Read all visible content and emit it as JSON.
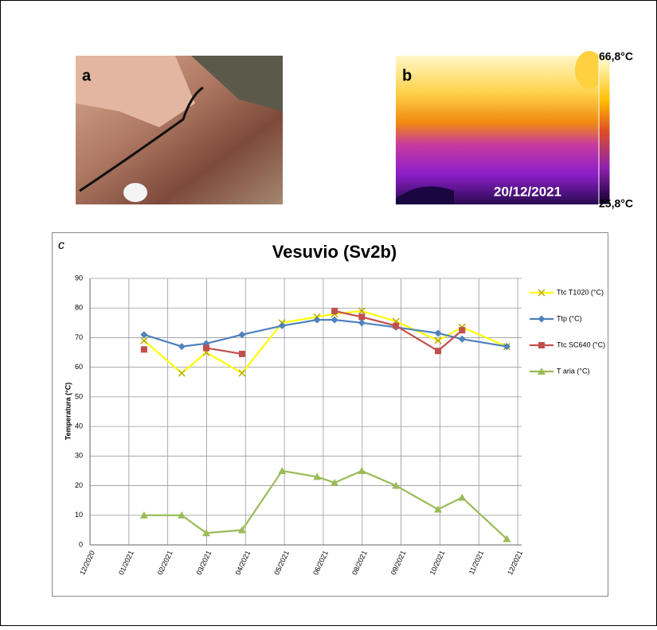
{
  "panels": {
    "a": {
      "label": "a"
    },
    "b": {
      "label": "b",
      "date": "20/12/2021",
      "scale_max": "66,8°C",
      "scale_min": "25,8°C"
    },
    "c": {
      "label": "c"
    }
  },
  "chart_data": {
    "type": "line",
    "title": "Vesuvio (Sv2b)",
    "y_label": "Temperatura (°C)",
    "x": [
      1.39,
      2.36,
      2.99,
      3.91,
      4.94,
      5.84,
      6.29,
      6.99,
      7.87,
      8.95,
      9.57,
      10.72
    ],
    "xlim": [
      0,
      11.1
    ],
    "xticks": [
      {
        "value": 0,
        "label": "12/2020"
      },
      {
        "value": 1,
        "label": "01/2021"
      },
      {
        "value": 2,
        "label": "02/2021"
      },
      {
        "value": 3,
        "label": "03/2021"
      },
      {
        "value": 4,
        "label": "04/2021"
      },
      {
        "value": 5,
        "label": "05/2021"
      },
      {
        "value": 6,
        "label": "06/2021"
      },
      {
        "value": 7,
        "label": "08/2021"
      },
      {
        "value": 8,
        "label": "09/2021"
      },
      {
        "value": 9,
        "label": "10/2021"
      },
      {
        "value": 10,
        "label": "11/2021"
      },
      {
        "value": 11,
        "label": "12/2021"
      }
    ],
    "ylim": [
      0,
      90
    ],
    "yticks": [
      0,
      10,
      20,
      30,
      40,
      50,
      60,
      70,
      80,
      90
    ],
    "grid": true,
    "series": [
      {
        "name": "Ttc T1020 (°C)",
        "color": "#ffff00",
        "marker_color": "#b8a800",
        "marker": "x",
        "values": [
          69,
          58,
          65,
          58,
          75,
          77,
          78,
          79,
          75.5,
          69,
          73.5,
          67
        ]
      },
      {
        "name": "Ttp (°C)",
        "color": "#4f81bd",
        "marker": "diamond",
        "values": [
          71,
          67,
          68,
          71,
          74,
          76,
          76,
          75,
          73.5,
          71.5,
          69.5,
          67
        ]
      },
      {
        "name": "Ttc SC640 (°C)",
        "color": "#c0504d",
        "marker": "square",
        "values": [
          66,
          null,
          66.5,
          64.5,
          null,
          null,
          79,
          77,
          74,
          65.5,
          72.5,
          null
        ]
      },
      {
        "name": "T aria (°C)",
        "color": "#9bbb59",
        "marker": "triangle",
        "values": [
          10,
          10,
          4,
          5,
          25,
          23,
          21,
          25,
          20,
          12,
          16,
          2
        ]
      }
    ]
  }
}
